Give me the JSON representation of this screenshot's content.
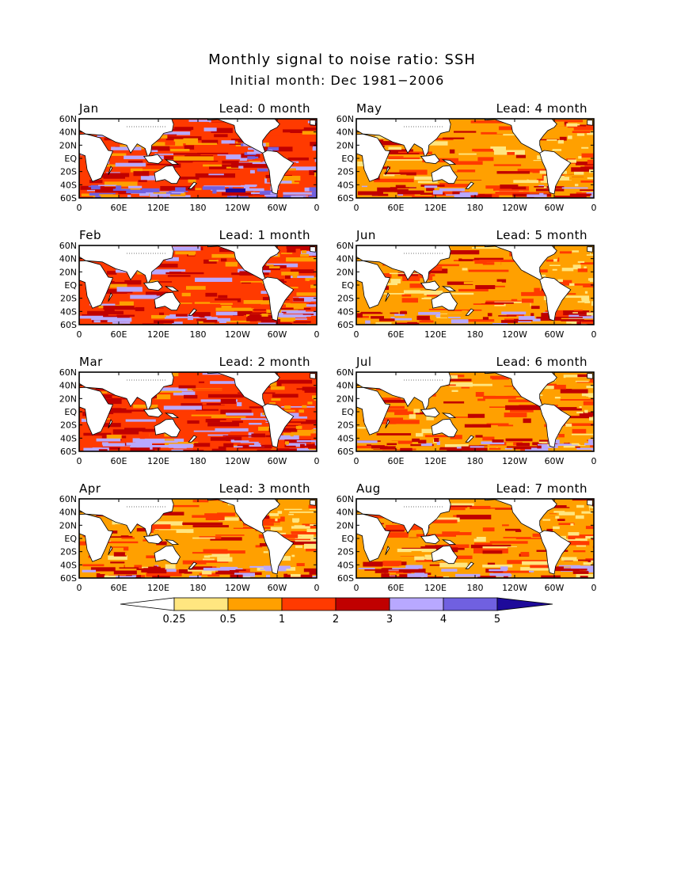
{
  "title": "Monthly signal to noise ratio: SSH",
  "subtitle": "Initial month: Dec 1981−2006",
  "chart_data": {
    "type": "heatmap",
    "variable": "SSH signal to noise ratio",
    "grid": false,
    "panels": [
      {
        "month": "Jan",
        "lead_label": "Lead: 0 month",
        "lead": 0,
        "lon_ticks": [
          "0",
          "60E",
          "120E",
          "180",
          "120W",
          "60W",
          "0"
        ],
        "dominant_ratio_range": [
          1,
          2
        ],
        "notable": "3-5 values in tropical Pacific and Southern Ocean"
      },
      {
        "month": "Feb",
        "lead_label": "Lead: 1 month",
        "lead": 1,
        "lon_ticks": [
          "0",
          "60E",
          "120E",
          "180",
          "120W",
          "60W",
          "0"
        ],
        "dominant_ratio_range": [
          1,
          2
        ]
      },
      {
        "month": "Mar",
        "lead_label": "Lead: 2 month",
        "lead": 2,
        "lon_ticks": [
          "0",
          "60E",
          "120E",
          "180",
          "120W",
          "60W",
          "0"
        ],
        "dominant_ratio_range": [
          1,
          2
        ]
      },
      {
        "month": "Apr",
        "lead_label": "Lead: 3 month",
        "lead": 3,
        "lon_ticks": [
          "0",
          "60E",
          "120E",
          "180",
          "120W",
          "60W",
          "0"
        ],
        "dominant_ratio_range": [
          0.5,
          2
        ]
      },
      {
        "month": "May",
        "lead_label": "Lead: 4 month",
        "lead": 4,
        "lon_ticks": [
          "0",
          "60E",
          "120E",
          "180",
          "120W",
          "60W",
          "0"
        ],
        "dominant_ratio_range": [
          0.5,
          2
        ]
      },
      {
        "month": "Jun",
        "lead_label": "Lead: 5 month",
        "lead": 5,
        "lon_ticks": [
          "0",
          "60E",
          "120E",
          "180",
          "120W",
          "60W",
          "0"
        ],
        "dominant_ratio_range": [
          0.5,
          2
        ]
      },
      {
        "month": "Jul",
        "lead_label": "Lead: 6 month",
        "lead": 6,
        "lon_ticks": [
          "0",
          "60E",
          "120E",
          "180",
          "120W",
          "60W",
          "0"
        ],
        "dominant_ratio_range": [
          0.5,
          2
        ]
      },
      {
        "month": "Aug",
        "lead_label": "Lead: 7 month",
        "lead": 7,
        "lon_ticks": [
          "0",
          "60E",
          "120E",
          "180",
          "120W",
          "60W",
          "0"
        ],
        "dominant_ratio_range": [
          0.5,
          2
        ]
      }
    ],
    "lat_ticks": [
      "60N",
      "40N",
      "20N",
      "EQ",
      "20S",
      "40S",
      "60S"
    ],
    "lat_range": [
      -60,
      60
    ],
    "colorbar": {
      "boundaries": [
        "0.25",
        "0.5",
        "1",
        "2",
        "3",
        "4",
        "5"
      ],
      "colors": [
        "#ffffff",
        "#ffe680",
        "#ffa000",
        "#ff3a00",
        "#c00000",
        "#b8a8ff",
        "#7060e0",
        "#1e0a9a"
      ]
    }
  },
  "colors": {
    "land": "#ffffff",
    "frame": "#000000"
  }
}
